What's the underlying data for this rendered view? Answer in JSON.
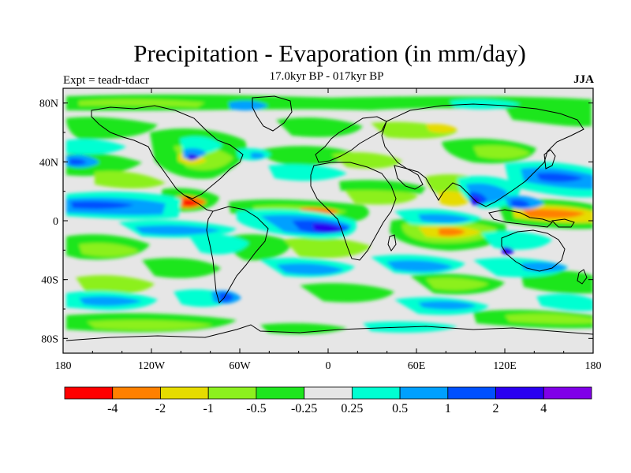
{
  "figure": {
    "title": "Precipitation - Evaporation (in mm/day)",
    "subtitle": "17.0kyr BP - 017kyr BP",
    "left_label": "Expt = teadr-tdacr",
    "right_label": "JJA"
  },
  "chart_data": {
    "type": "heatmap",
    "map_projection": "cylindrical-equidistant",
    "x_ticks": [
      "180",
      "120W",
      "60W",
      "0",
      "60E",
      "120E",
      "180"
    ],
    "x_tick_values": [
      -180,
      -120,
      -60,
      0,
      60,
      120,
      180
    ],
    "y_ticks": [
      "80N",
      "40N",
      "0",
      "40S",
      "80S"
    ],
    "y_tick_values": [
      80,
      40,
      0,
      -40,
      -80
    ],
    "lon_range": [
      -180,
      180
    ],
    "lat_range": [
      -90,
      90
    ],
    "colorbar": {
      "labels": [
        "-4",
        "-2",
        "-1",
        "-0.5",
        "-0.25",
        "0.25",
        "0.5",
        "1",
        "2",
        "4"
      ],
      "colors": [
        "#ff0000",
        "#ff8000",
        "#e6dc00",
        "#8cf01e",
        "#1ee61e",
        "#e6e6e6",
        "#00ffd2",
        "#00a0ff",
        "#0050ff",
        "#2a00f0",
        "#8000e8"
      ]
    },
    "background_color": "#e6e6e6"
  }
}
